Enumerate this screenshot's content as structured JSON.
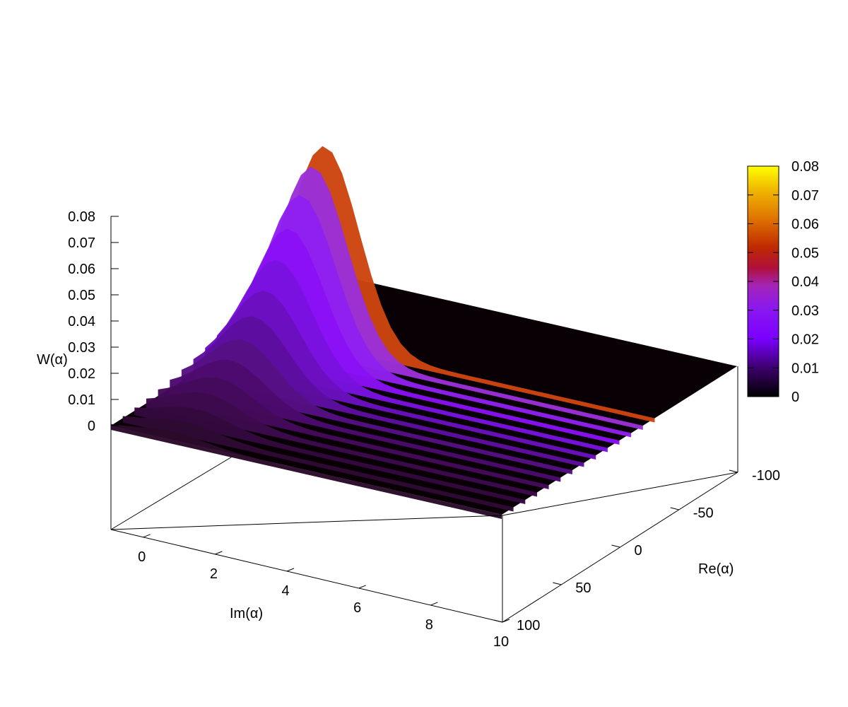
{
  "chart_data": {
    "type": "surface",
    "zlabel": "W(α)",
    "xlabel": "Im(α)",
    "ylabel": "Re(α)",
    "x_ticks": [
      "0",
      "2",
      "4",
      "6",
      "8",
      "10"
    ],
    "y_ticks": [
      "-100",
      "-50",
      "0",
      "50",
      "100"
    ],
    "z_ticks": [
      "0",
      "0.01",
      "0.02",
      "0.03",
      "0.04",
      "0.05",
      "0.06",
      "0.07",
      "0.08"
    ],
    "xlim": [
      -0.9,
      10
    ],
    "ylim": [
      -100,
      100
    ],
    "zlim": [
      0,
      0.08
    ],
    "colorbar": {
      "ticks": [
        "0",
        "0.01",
        "0.02",
        "0.03",
        "0.04",
        "0.05",
        "0.06",
        "0.07",
        "0.08"
      ],
      "range": [
        0,
        0.08
      ],
      "palette": [
        "#000000",
        "#3a0068",
        "#7a00ff",
        "#9b23d8",
        "#b2002b",
        "#c83000",
        "#e08000",
        "#f0c000",
        "#ffff00"
      ]
    },
    "peak": {
      "im": 0.8,
      "re": -35,
      "value": 0.075
    },
    "ridges": [
      {
        "re": 100,
        "peak": 0.003,
        "color": "#2a0a2a"
      },
      {
        "re": 90,
        "peak": 0.004,
        "color": "#2e0a33"
      },
      {
        "re": 80,
        "peak": 0.006,
        "color": "#34093e"
      },
      {
        "re": 70,
        "peak": 0.009,
        "color": "#3d0a4d"
      },
      {
        "re": 60,
        "peak": 0.012,
        "color": "#440a5c"
      },
      {
        "re": 50,
        "peak": 0.016,
        "color": "#4c0a6e"
      },
      {
        "re": 40,
        "peak": 0.021,
        "color": "#560f84"
      },
      {
        "re": 30,
        "peak": 0.027,
        "color": "#5d0ea0"
      },
      {
        "re": 20,
        "peak": 0.034,
        "color": "#6a10bf"
      },
      {
        "re": 10,
        "peak": 0.043,
        "color": "#7a12e0"
      },
      {
        "re": 0,
        "peak": 0.052,
        "color": "#8a10f5"
      },
      {
        "re": -10,
        "peak": 0.062,
        "color": "#9020f0"
      },
      {
        "re": -20,
        "peak": 0.07,
        "color": "#9b30d8"
      },
      {
        "re": -30,
        "peak": 0.075,
        "color": "#cc4410"
      }
    ]
  }
}
